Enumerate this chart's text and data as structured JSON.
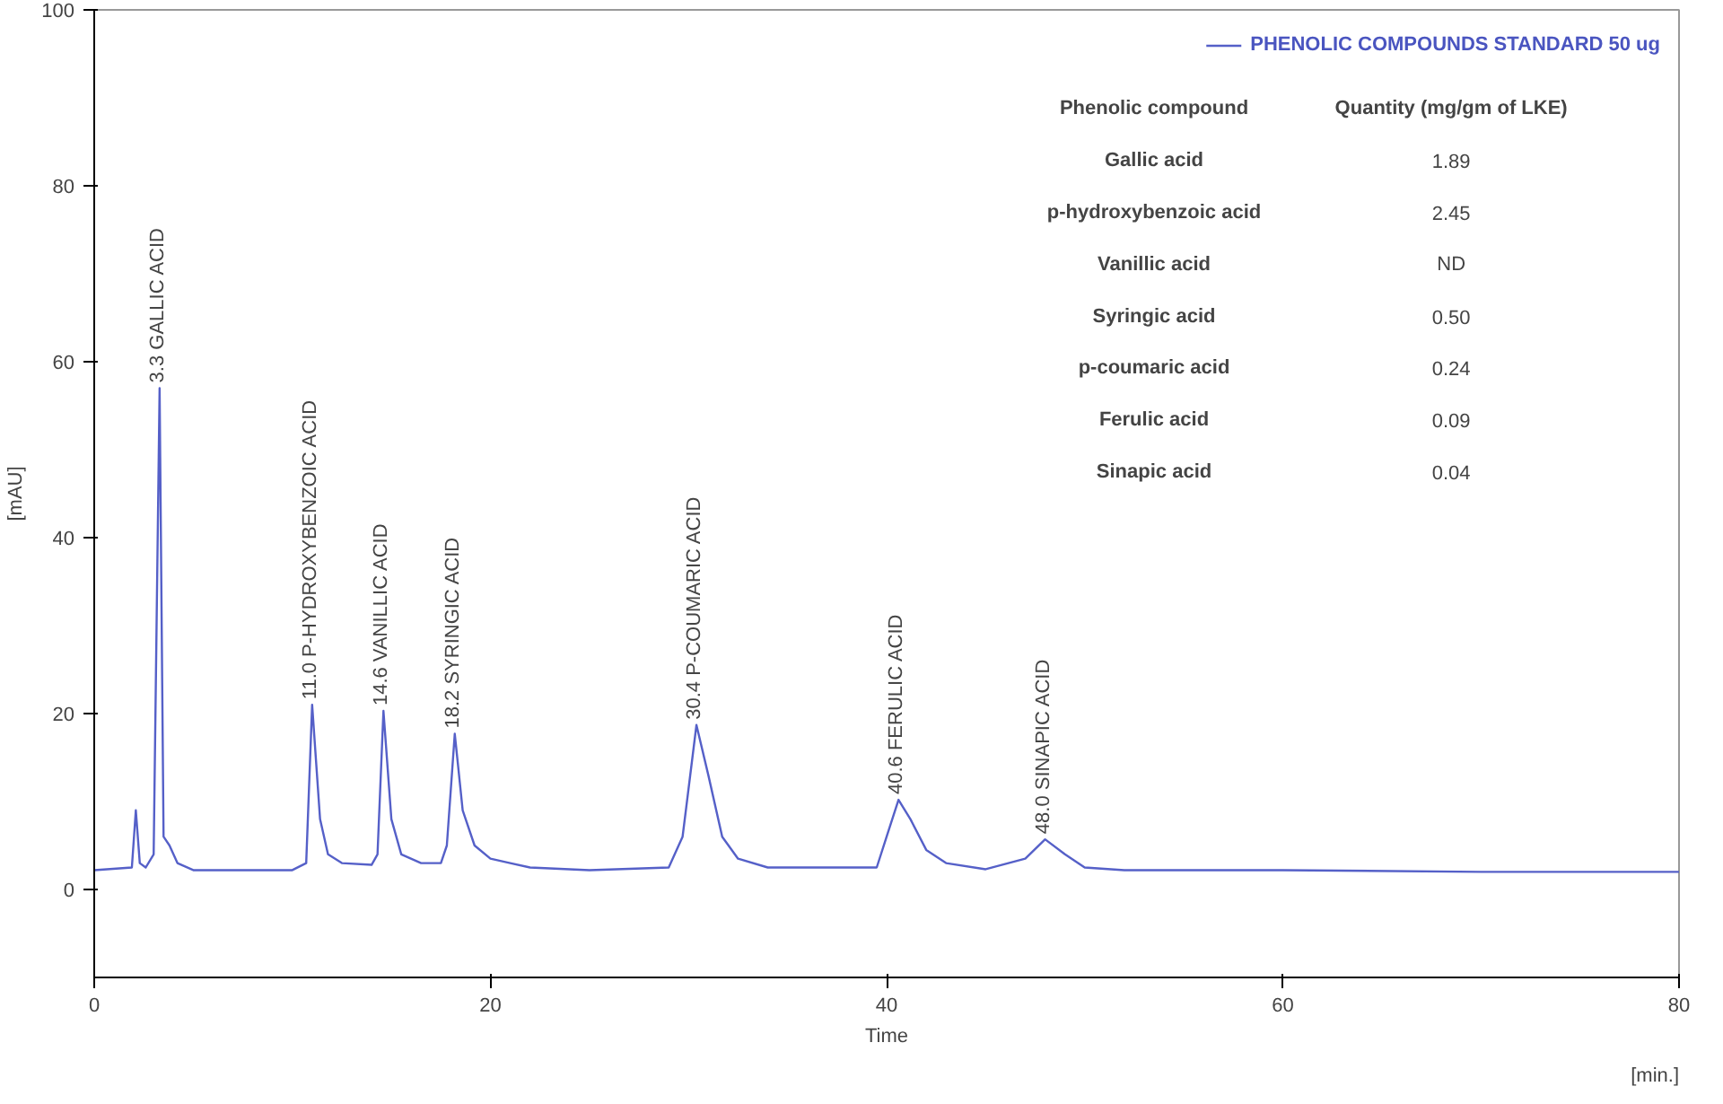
{
  "chart_data": {
    "type": "line",
    "xlabel": "Time",
    "ylabel": "[mAU]",
    "legend": "top right",
    "grid": false,
    "marker": "none",
    "line_style": "solid",
    "xlim": [
      0,
      80
    ],
    "xticks": [
      0,
      20,
      40,
      60,
      {
        "value": 80,
        "label": "80"
      }
    ],
    "ylim": [
      -10,
      100
    ],
    "yticks": [
      0,
      20,
      40,
      60,
      80,
      100
    ],
    "series": [
      {
        "name": "PHENOLIC COMPOUNDS STANDARD 50 ug",
        "color": "#5560c8",
        "x": [
          0,
          1.9,
          2.1,
          2.3,
          2.6,
          3.0,
          3.3,
          3.5,
          3.8,
          4.2,
          5,
          10,
          10.7,
          11.0,
          11.4,
          11.8,
          12.5,
          14,
          14.3,
          14.6,
          15.0,
          15.5,
          16.5,
          17.5,
          17.8,
          18.2,
          18.6,
          19.2,
          20,
          21,
          22,
          25,
          29,
          29.7,
          30.4,
          31,
          31.7,
          32.5,
          34,
          39.5,
          40.0,
          40.6,
          41.2,
          42,
          43,
          45,
          47.0,
          48.0,
          49,
          50,
          52,
          60,
          70,
          80
        ],
        "values": [
          2.2,
          2.5,
          9,
          3,
          2.5,
          4,
          57,
          6,
          5,
          3,
          2.2,
          2.2,
          3,
          21,
          8,
          4,
          3,
          2.8,
          4,
          20.3,
          8,
          4,
          3,
          3,
          5,
          17.7,
          9,
          5,
          3.5,
          3,
          2.5,
          2.2,
          2.5,
          6,
          18.7,
          13,
          6,
          3.5,
          2.5,
          2.5,
          6,
          10.2,
          8,
          4.5,
          3,
          2.3,
          3.5,
          5.7,
          4,
          2.5,
          2.2,
          2.2,
          2,
          2
        ]
      }
    ],
    "annotations": [
      {
        "text": "3.3 GALLIC ACID",
        "x": 3.3,
        "y": 57
      },
      {
        "text": "11.0  P-HYDROXYBENZOIC ACID",
        "x": 11.0,
        "y": 21
      },
      {
        "text": "14.6 VANILLIC ACID",
        "x": 14.6,
        "y": 20.3
      },
      {
        "text": "18.2 SYRINGIC ACID",
        "x": 18.2,
        "y": 17.7
      },
      {
        "text": "30.4 P-COUMARIC ACID",
        "x": 30.4,
        "y": 18.7
      },
      {
        "text": "40.6 FERULIC ACID",
        "x": 40.6,
        "y": 10.2
      },
      {
        "text": "48.0 SINAPIC ACID",
        "x": 48.0,
        "y": 5.7
      },
      "Phenolic compound",
      "Quantity (mg/gm of LKE)",
      "Gallic acid",
      "1.89",
      "p-hydroxybenzoic acid",
      "2.45",
      "Vanillic acid",
      "ND",
      "Syringic acid",
      "0.50",
      "p-coumaric acid",
      "0.24",
      "Ferulic acid",
      "0.09",
      "Sinapic acid",
      "0.04",
      "[min.]"
    ]
  }
}
